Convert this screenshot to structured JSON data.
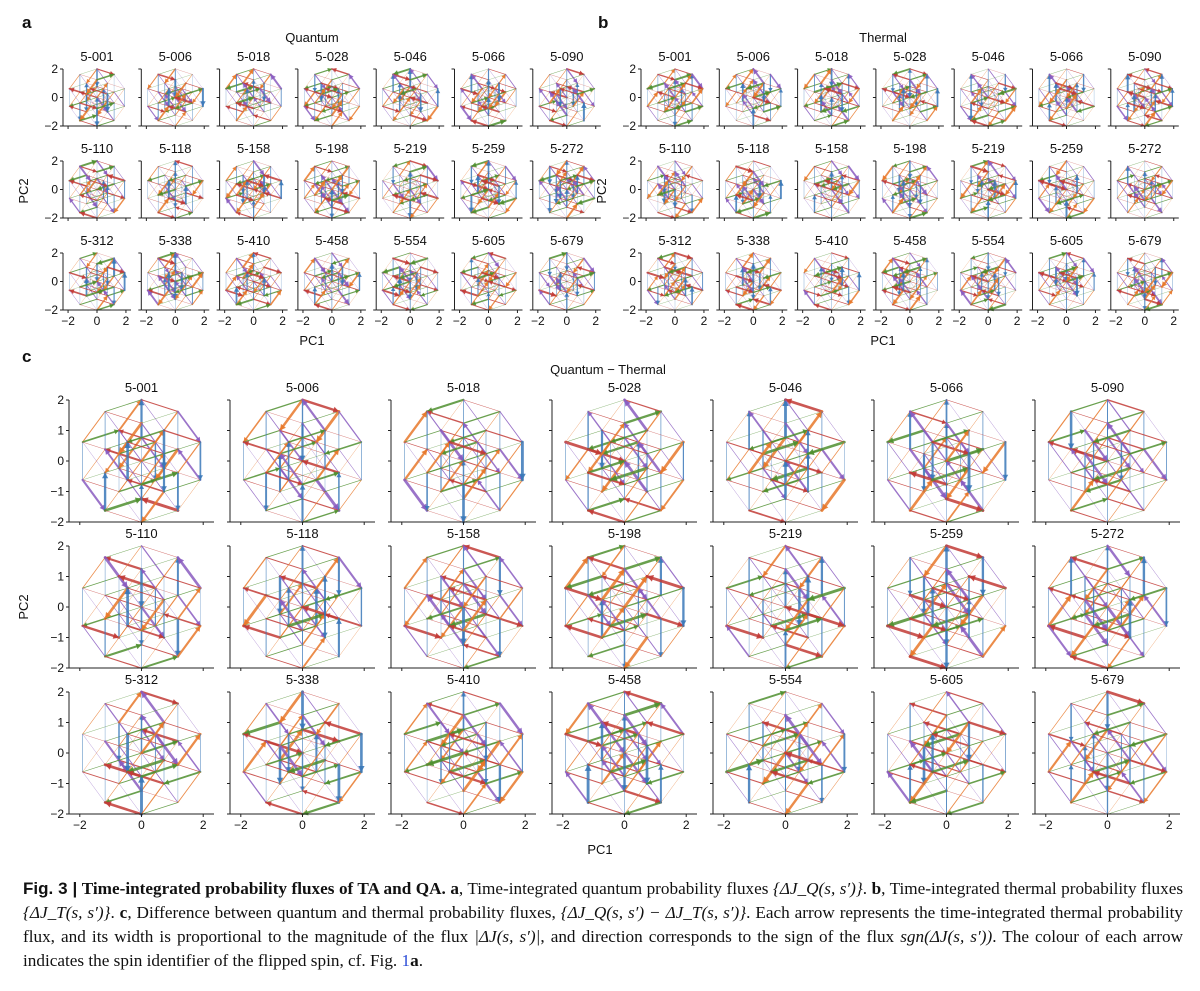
{
  "figure": {
    "panels": [
      {
        "letter": "a",
        "title": "Quantum",
        "size": "small",
        "xlabel": "PC1",
        "ylabel": "PC2",
        "yticks": [
          "2",
          "0",
          "−2"
        ],
        "xticks": [
          "−2",
          "0",
          "2"
        ]
      },
      {
        "letter": "b",
        "title": "Thermal",
        "size": "small",
        "xlabel": "PC1",
        "ylabel": "PC2",
        "yticks": [
          "2",
          "0",
          "−2"
        ],
        "xticks": [
          "−2",
          "0",
          "2"
        ]
      },
      {
        "letter": "c",
        "title": "Quantum − Thermal",
        "size": "large",
        "xlabel": "PC1",
        "ylabel": "PC2",
        "yticks": [
          "2",
          "1",
          "0",
          "−1",
          "−2"
        ],
        "xticks": [
          "−2",
          "0",
          "2"
        ]
      }
    ],
    "instances": [
      [
        "5-001",
        "5-006",
        "5-018",
        "5-028",
        "5-046",
        "5-066",
        "5-090"
      ],
      [
        "5-110",
        "5-118",
        "5-158",
        "5-198",
        "5-219",
        "5-259",
        "5-272"
      ],
      [
        "5-312",
        "5-338",
        "5-410",
        "5-458",
        "5-554",
        "5-605",
        "5-679"
      ]
    ],
    "spin_colors": [
      "#3a78b8",
      "#e8782a",
      "#4f8f2f",
      "#c23b36",
      "#8a5cc0"
    ]
  },
  "caption": {
    "label": "Fig. 3 |",
    "title": "Time-integrated probability fluxes of TA and QA.",
    "a_label": "a",
    "a_text": ", Time-integrated quantum probability fluxes ",
    "a_math": "{ΔJ_Q(s, s′)}",
    "b_label": "b",
    "b_text": ", Time-integrated thermal probability fluxes ",
    "b_math": "{ΔJ_T(s, s′)}",
    "c_label": "c",
    "c_text": ", Difference between quantum and thermal probability fluxes, ",
    "c_math": "{ΔJ_Q(s, s′) − ΔJ_T(s, s′)}",
    "rest_1": ". Each arrow represents the time-integrated thermal probability flux, and its width is proportional to the magnitude of the flux ",
    "rest_math_1": "|ΔJ(s, s′)|",
    "rest_2": ", and direction corresponds to the sign of the flux ",
    "rest_math_2": "sgn(ΔJ(s, s′))",
    "rest_3": ". The colour of each arrow indicates the spin identifier of the flipped spin, cf. Fig. ",
    "ref_num": "1",
    "ref_letter": "a",
    "end": "."
  }
}
